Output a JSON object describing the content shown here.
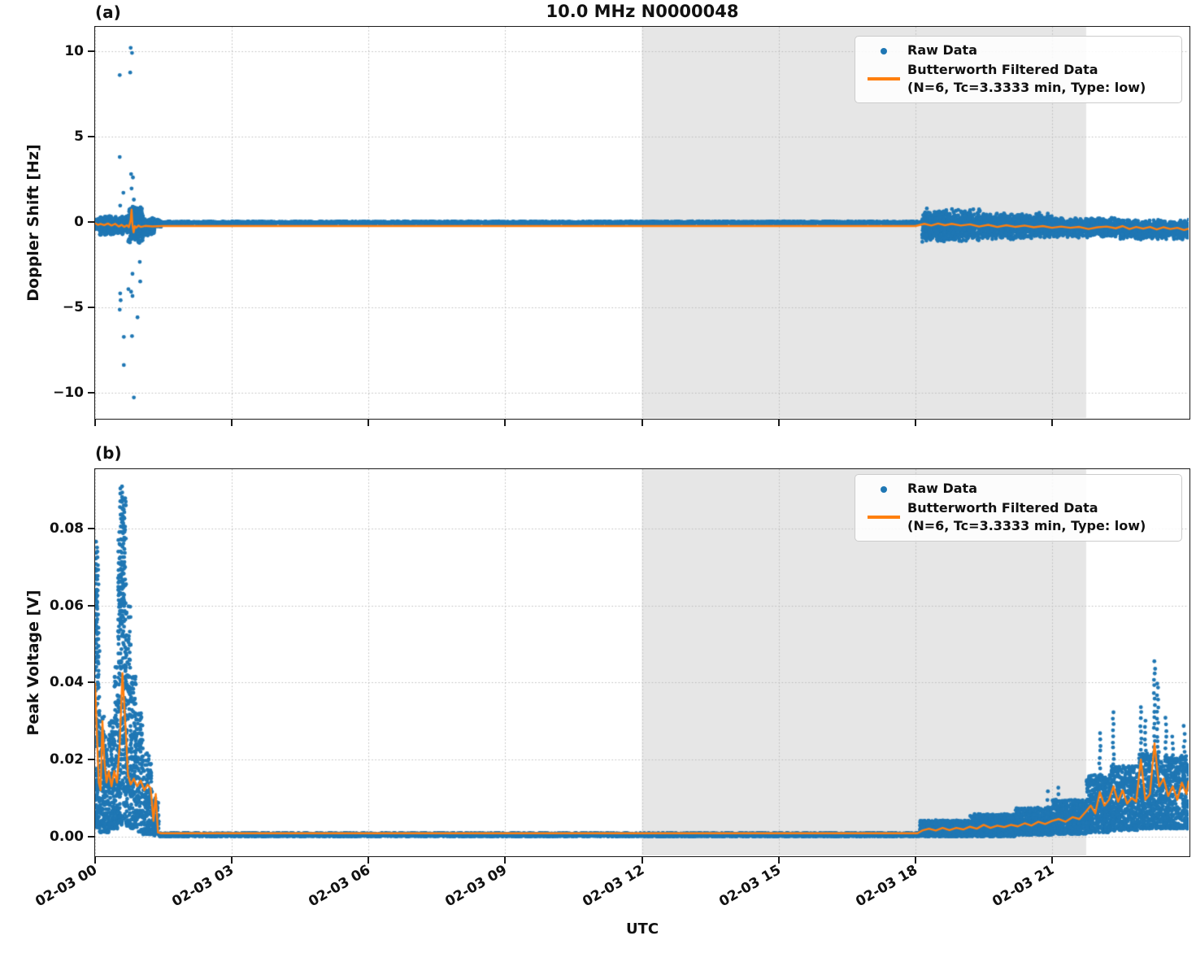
{
  "figure": {
    "title": "10.0 MHz N0000048",
    "xlabel": "UTC"
  },
  "legend": {
    "raw_label": "Raw Data",
    "filtered_label_line1": "Butterworth Filtered Data",
    "filtered_label_line2": "(N=6, Tc=3.3333 min, Type: low)"
  },
  "chart_data": {
    "type": "scatter",
    "title": "10.0 MHz N0000048",
    "xlabel": "UTC",
    "grid": true,
    "legend_position": "upper right",
    "colors": {
      "raw": "#1f77b4",
      "filtered": "#ff7f0e",
      "shaded_span": "#e6e6e6",
      "grid": "#bbbbbb"
    },
    "x": {
      "lim": [
        0,
        24
      ],
      "unit": "hours since 02-03 00:00 UTC",
      "ticks": [
        0,
        3,
        6,
        9,
        12,
        15,
        18,
        21
      ],
      "tick_labels": [
        "02-03 00",
        "02-03 03",
        "02-03 06",
        "02-03 09",
        "02-03 12",
        "02-03 15",
        "02-03 18",
        "02-03 21"
      ]
    },
    "shaded_span": {
      "t0": 12.0,
      "t1": 21.75
    },
    "series_names": [
      "Raw Data",
      "Butterworth Filtered Data (N=6, Tc=3.3333 min, Type: low)"
    ],
    "panels": [
      {
        "id": "a",
        "label": "(a)",
        "ylabel": "Doppler Shift [Hz]",
        "ylim": [
          -11.5,
          11.43
        ],
        "yticks": [
          10,
          5,
          0,
          -5,
          -10
        ],
        "ytick_labels": [
          "10",
          "5",
          "0",
          "−5",
          "−10"
        ],
        "band_mode": "center",
        "raw_band_segments": [
          [
            0.0,
            0.1,
            -0.15,
            0.35,
            1000
          ],
          [
            0.1,
            0.72,
            -0.22,
            0.6,
            1000
          ],
          [
            0.72,
            1.05,
            -0.15,
            1.15,
            1100
          ],
          [
            1.05,
            1.3,
            -0.3,
            0.55,
            900
          ],
          [
            1.3,
            1.45,
            -0.1,
            0.25,
            700
          ],
          [
            1.45,
            18.15,
            -0.05,
            0.08,
            280
          ],
          [
            18.15,
            19.5,
            -0.22,
            1.0,
            650
          ],
          [
            19.5,
            21.0,
            -0.25,
            0.8,
            650
          ],
          [
            21.0,
            22.5,
            -0.35,
            0.6,
            650
          ],
          [
            22.5,
            24.0,
            -0.45,
            0.6,
            650
          ]
        ],
        "raw_outliers": [
          [
            0.78,
            10.2
          ],
          [
            0.81,
            9.9
          ],
          [
            0.77,
            8.75
          ],
          [
            0.54,
            8.6
          ],
          [
            0.54,
            3.8
          ],
          [
            0.79,
            2.8
          ],
          [
            0.83,
            2.6
          ],
          [
            0.8,
            1.95
          ],
          [
            0.62,
            1.7
          ],
          [
            0.85,
            1.3
          ],
          [
            0.55,
            0.95
          ],
          [
            0.98,
            -2.35
          ],
          [
            0.82,
            -3.05
          ],
          [
            0.99,
            -3.5
          ],
          [
            0.73,
            -3.95
          ],
          [
            0.79,
            -4.1
          ],
          [
            0.82,
            -4.35
          ],
          [
            0.55,
            -4.2
          ],
          [
            0.56,
            -4.6
          ],
          [
            0.54,
            -5.15
          ],
          [
            0.93,
            -5.6
          ],
          [
            0.63,
            -6.75
          ],
          [
            0.81,
            -6.7
          ],
          [
            0.63,
            -8.4
          ],
          [
            0.85,
            -10.3
          ]
        ],
        "filtered_line": [
          [
            0.0,
            -0.08
          ],
          [
            0.06,
            -0.18
          ],
          [
            0.12,
            -0.12
          ],
          [
            0.2,
            -0.2
          ],
          [
            0.28,
            -0.1
          ],
          [
            0.36,
            -0.22
          ],
          [
            0.44,
            -0.12
          ],
          [
            0.52,
            -0.28
          ],
          [
            0.58,
            -0.18
          ],
          [
            0.64,
            -0.3
          ],
          [
            0.7,
            -0.2
          ],
          [
            0.74,
            -0.32
          ],
          [
            0.78,
            0.1
          ],
          [
            0.8,
            0.72
          ],
          [
            0.82,
            -0.2
          ],
          [
            0.845,
            -0.62
          ],
          [
            0.87,
            -0.25
          ],
          [
            0.9,
            -0.35
          ],
          [
            0.95,
            -0.22
          ],
          [
            1.0,
            -0.3
          ],
          [
            1.1,
            -0.24
          ],
          [
            1.25,
            -0.27
          ],
          [
            1.5,
            -0.25
          ],
          [
            2.0,
            -0.25
          ],
          [
            3.0,
            -0.25
          ],
          [
            4.0,
            -0.25
          ],
          [
            6.0,
            -0.25
          ],
          [
            8.0,
            -0.25
          ],
          [
            10.0,
            -0.25
          ],
          [
            12.0,
            -0.25
          ],
          [
            14.0,
            -0.25
          ],
          [
            16.0,
            -0.25
          ],
          [
            18.0,
            -0.25
          ],
          [
            18.2,
            -0.12
          ],
          [
            18.35,
            -0.22
          ],
          [
            18.5,
            -0.1
          ],
          [
            18.65,
            -0.2
          ],
          [
            18.8,
            -0.12
          ],
          [
            19.0,
            -0.22
          ],
          [
            19.2,
            -0.15
          ],
          [
            19.4,
            -0.28
          ],
          [
            19.6,
            -0.18
          ],
          [
            19.8,
            -0.3
          ],
          [
            20.0,
            -0.2
          ],
          [
            20.2,
            -0.3
          ],
          [
            20.4,
            -0.22
          ],
          [
            20.6,
            -0.32
          ],
          [
            20.8,
            -0.25
          ],
          [
            21.0,
            -0.35
          ],
          [
            21.2,
            -0.28
          ],
          [
            21.4,
            -0.35
          ],
          [
            21.6,
            -0.3
          ],
          [
            21.8,
            -0.42
          ],
          [
            22.0,
            -0.32
          ],
          [
            22.2,
            -0.28
          ],
          [
            22.4,
            -0.38
          ],
          [
            22.55,
            -0.25
          ],
          [
            22.7,
            -0.42
          ],
          [
            22.85,
            -0.3
          ],
          [
            23.0,
            -0.4
          ],
          [
            23.15,
            -0.3
          ],
          [
            23.3,
            -0.45
          ],
          [
            23.45,
            -0.32
          ],
          [
            23.6,
            -0.42
          ],
          [
            23.75,
            -0.35
          ],
          [
            23.9,
            -0.48
          ],
          [
            24.0,
            -0.4
          ]
        ]
      },
      {
        "id": "b",
        "label": "(b)",
        "ylabel": "Peak Voltage [V]",
        "ylim": [
          -0.00496,
          0.0955
        ],
        "yticks": [
          0.08,
          0.06,
          0.04,
          0.02,
          0.0
        ],
        "ytick_labels": [
          "0.08",
          "0.06",
          "0.04",
          "0.02",
          "0.00"
        ],
        "band_mode": "range",
        "column_step": 0.0016,
        "raw_band_segments": [
          [
            0.0,
            0.05,
            0.002,
            0.07,
            1500
          ],
          [
            0.05,
            0.1,
            0.002,
            0.05,
            1200
          ],
          [
            0.1,
            0.2,
            0.001,
            0.032,
            900
          ],
          [
            0.2,
            0.3,
            0.001,
            0.026,
            900
          ],
          [
            0.3,
            0.42,
            0.002,
            0.03,
            1000
          ],
          [
            0.42,
            0.5,
            0.002,
            0.045,
            1200
          ],
          [
            0.5,
            0.58,
            0.003,
            0.07,
            1400
          ],
          [
            0.58,
            0.68,
            0.003,
            0.088,
            1500
          ],
          [
            0.68,
            0.78,
            0.002,
            0.06,
            1300
          ],
          [
            0.78,
            0.9,
            0.002,
            0.042,
            1100
          ],
          [
            0.9,
            1.05,
            0.001,
            0.032,
            900
          ],
          [
            1.05,
            1.25,
            0.0005,
            0.022,
            700
          ],
          [
            1.25,
            1.4,
            0.0002,
            0.01,
            500
          ],
          [
            1.4,
            18.1,
            0.0,
            0.0009,
            260
          ],
          [
            18.1,
            19.2,
            0.0,
            0.0042,
            700
          ],
          [
            19.2,
            20.2,
            0.0,
            0.0058,
            700
          ],
          [
            20.2,
            21.0,
            0.0004,
            0.0075,
            700
          ],
          [
            21.0,
            21.75,
            0.0006,
            0.0095,
            700
          ],
          [
            21.75,
            22.3,
            0.001,
            0.016,
            800
          ],
          [
            22.3,
            22.9,
            0.0015,
            0.0185,
            800
          ],
          [
            22.9,
            23.4,
            0.002,
            0.022,
            800
          ],
          [
            23.4,
            24.0,
            0.002,
            0.021,
            800
          ]
        ],
        "raw_columns": [
          [
            0.03,
            0.045,
            0.077
          ],
          [
            0.06,
            0.04,
            0.074
          ],
          [
            0.52,
            0.05,
            0.079
          ],
          [
            0.56,
            0.055,
            0.0905
          ],
          [
            0.6,
            0.06,
            0.0913
          ],
          [
            0.63,
            0.05,
            0.086
          ],
          [
            20.9,
            0.008,
            0.0115
          ],
          [
            21.15,
            0.009,
            0.0125
          ],
          [
            22.05,
            0.016,
            0.0265
          ],
          [
            22.35,
            0.017,
            0.0325
          ],
          [
            22.95,
            0.018,
            0.0335
          ],
          [
            23.05,
            0.016,
            0.03
          ],
          [
            23.25,
            0.02,
            0.0455
          ],
          [
            23.32,
            0.02,
            0.04
          ],
          [
            23.5,
            0.018,
            0.0305
          ],
          [
            23.65,
            0.016,
            0.026
          ],
          [
            23.9,
            0.015,
            0.0285
          ]
        ],
        "raw_outliers": [],
        "filtered_line": [
          [
            0.0,
            0.04
          ],
          [
            0.04,
            0.026
          ],
          [
            0.08,
            0.014
          ],
          [
            0.12,
            0.012
          ],
          [
            0.16,
            0.03
          ],
          [
            0.2,
            0.02
          ],
          [
            0.25,
            0.014
          ],
          [
            0.3,
            0.017
          ],
          [
            0.36,
            0.013
          ],
          [
            0.42,
            0.017
          ],
          [
            0.48,
            0.014
          ],
          [
            0.54,
            0.024
          ],
          [
            0.6,
            0.0425
          ],
          [
            0.64,
            0.034
          ],
          [
            0.68,
            0.026
          ],
          [
            0.72,
            0.016
          ],
          [
            0.78,
            0.0135
          ],
          [
            0.85,
            0.015
          ],
          [
            0.92,
            0.013
          ],
          [
            1.0,
            0.0145
          ],
          [
            1.08,
            0.012
          ],
          [
            1.15,
            0.0135
          ],
          [
            1.22,
            0.0125
          ],
          [
            1.28,
            0.004
          ],
          [
            1.33,
            0.011
          ],
          [
            1.38,
            0.001
          ],
          [
            1.45,
            0.0008
          ],
          [
            2.0,
            0.0008
          ],
          [
            4.0,
            0.0008
          ],
          [
            6.0,
            0.0008
          ],
          [
            8.0,
            0.0008
          ],
          [
            10.0,
            0.0008
          ],
          [
            12.0,
            0.0008
          ],
          [
            14.0,
            0.0008
          ],
          [
            16.0,
            0.0008
          ],
          [
            18.05,
            0.0008
          ],
          [
            18.15,
            0.0015
          ],
          [
            18.3,
            0.002
          ],
          [
            18.45,
            0.0015
          ],
          [
            18.6,
            0.0022
          ],
          [
            18.75,
            0.0016
          ],
          [
            18.9,
            0.0022
          ],
          [
            19.05,
            0.0018
          ],
          [
            19.2,
            0.0025
          ],
          [
            19.35,
            0.002
          ],
          [
            19.5,
            0.003
          ],
          [
            19.65,
            0.0022
          ],
          [
            19.8,
            0.0028
          ],
          [
            19.95,
            0.0024
          ],
          [
            20.1,
            0.003
          ],
          [
            20.25,
            0.0026
          ],
          [
            20.4,
            0.0034
          ],
          [
            20.55,
            0.0028
          ],
          [
            20.7,
            0.0038
          ],
          [
            20.85,
            0.0032
          ],
          [
            21.0,
            0.004
          ],
          [
            21.15,
            0.0045
          ],
          [
            21.3,
            0.0038
          ],
          [
            21.45,
            0.005
          ],
          [
            21.6,
            0.0045
          ],
          [
            21.75,
            0.0065
          ],
          [
            21.85,
            0.008
          ],
          [
            21.95,
            0.006
          ],
          [
            22.05,
            0.0115
          ],
          [
            22.15,
            0.008
          ],
          [
            22.25,
            0.0095
          ],
          [
            22.35,
            0.013
          ],
          [
            22.45,
            0.009
          ],
          [
            22.55,
            0.012
          ],
          [
            22.65,
            0.0085
          ],
          [
            22.75,
            0.01
          ],
          [
            22.85,
            0.009
          ],
          [
            22.95,
            0.02
          ],
          [
            23.05,
            0.0095
          ],
          [
            23.15,
            0.011
          ],
          [
            23.25,
            0.0242
          ],
          [
            23.35,
            0.013
          ],
          [
            23.45,
            0.015
          ],
          [
            23.55,
            0.0105
          ],
          [
            23.65,
            0.013
          ],
          [
            23.75,
            0.0095
          ],
          [
            23.85,
            0.014
          ],
          [
            23.95,
            0.011
          ],
          [
            24.0,
            0.0145
          ]
        ]
      }
    ]
  }
}
